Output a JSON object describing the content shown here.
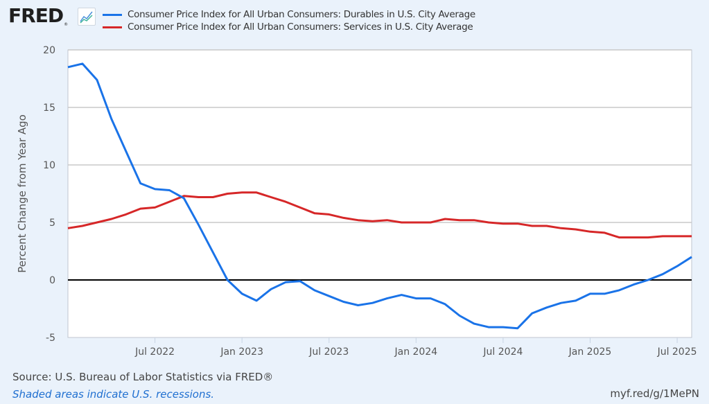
{
  "header": {
    "logo_text": "FRED",
    "logo_reg": "®",
    "graph_icon": "line-chart-icon"
  },
  "colors": {
    "durables": "#1a73e8",
    "services": "#d62728",
    "background": "#eaf2fb",
    "plot_bg": "#ffffff",
    "grid": "#c8c8c8",
    "zero_line": "#000000"
  },
  "footer": {
    "source": "Source: U.S. Bureau of Labor Statistics via FRED®",
    "note": "Shaded areas indicate U.S. recessions.",
    "link": "myf.red/g/1MePN"
  },
  "chart_data": {
    "type": "line",
    "title": "",
    "xlabel": "",
    "ylabel": "Percent Change from Year Ago",
    "ylim": [
      -5,
      20
    ],
    "yticks": [
      -5,
      0,
      5,
      10,
      15,
      20
    ],
    "grid": true,
    "legend_position": "top",
    "x_start": "2022-01",
    "x_end": "2025-08",
    "xticks": [
      {
        "label": "Jul 2022",
        "index": 6
      },
      {
        "label": "Jan 2023",
        "index": 12
      },
      {
        "label": "Jul 2023",
        "index": 18
      },
      {
        "label": "Jan 2024",
        "index": 24
      },
      {
        "label": "Jul 2024",
        "index": 30
      },
      {
        "label": "Jan 2025",
        "index": 36
      },
      {
        "label": "Jul 2025",
        "index": 42
      }
    ],
    "x": [
      "2022-01",
      "2022-02",
      "2022-03",
      "2022-04",
      "2022-05",
      "2022-06",
      "2022-07",
      "2022-08",
      "2022-09",
      "2022-10",
      "2022-11",
      "2022-12",
      "2023-01",
      "2023-02",
      "2023-03",
      "2023-04",
      "2023-05",
      "2023-06",
      "2023-07",
      "2023-08",
      "2023-09",
      "2023-10",
      "2023-11",
      "2023-12",
      "2024-01",
      "2024-02",
      "2024-03",
      "2024-04",
      "2024-05",
      "2024-06",
      "2024-07",
      "2024-08",
      "2024-09",
      "2024-10",
      "2024-11",
      "2024-12",
      "2025-01",
      "2025-02",
      "2025-03",
      "2025-04",
      "2025-05",
      "2025-06",
      "2025-07",
      "2025-08"
    ],
    "series": [
      {
        "name": "Consumer Price Index for All Urban Consumers: Durables in U.S. City Average",
        "key": "durables",
        "values": [
          18.5,
          18.8,
          17.4,
          14.0,
          11.2,
          8.4,
          7.9,
          7.8,
          7.1,
          4.8,
          2.4,
          0.0,
          -1.2,
          -1.8,
          -0.8,
          -0.2,
          -0.1,
          -0.9,
          -1.4,
          -1.9,
          -2.2,
          -2.0,
          -1.6,
          -1.3,
          -1.6,
          -1.6,
          -2.1,
          -3.1,
          -3.8,
          -4.1,
          -4.1,
          -4.2,
          -2.9,
          -2.4,
          -2.0,
          -1.8,
          -1.2,
          -1.2,
          -0.9,
          -0.4,
          0.0,
          0.5,
          1.2,
          2.0
        ]
      },
      {
        "name": "Consumer Price Index for All Urban Consumers: Services in U.S. City Average",
        "key": "services",
        "values": [
          4.5,
          4.7,
          5.0,
          5.3,
          5.7,
          6.2,
          6.3,
          6.8,
          7.3,
          7.2,
          7.2,
          7.5,
          7.6,
          7.6,
          7.2,
          6.8,
          6.3,
          5.8,
          5.7,
          5.4,
          5.2,
          5.1,
          5.2,
          5.0,
          5.0,
          5.0,
          5.3,
          5.2,
          5.2,
          5.0,
          4.9,
          4.9,
          4.7,
          4.7,
          4.5,
          4.4,
          4.2,
          4.1,
          3.7,
          3.7,
          3.7,
          3.8,
          3.8,
          3.8
        ]
      }
    ]
  }
}
